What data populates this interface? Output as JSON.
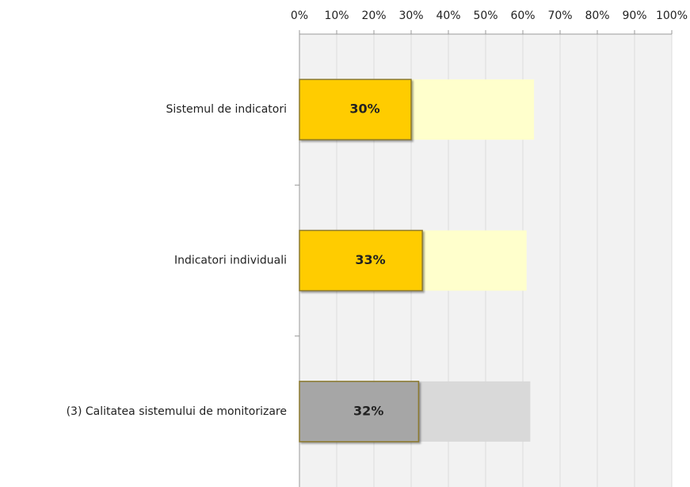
{
  "chart_data": {
    "type": "bar",
    "orientation": "horizontal",
    "categories": [
      "Sistemul de indicatori",
      "Indicatori individuali",
      "(3) Calitatea sistemului de monitorizare"
    ],
    "series": [
      {
        "colors": [
          "#ffffcc",
          "#ffffcc",
          "#d9d9d9"
        ],
        "values": [
          63,
          61,
          62
        ]
      },
      {
        "colors": [
          "#ffcc00",
          "#ffcc00",
          "#a6a6a6"
        ],
        "values": [
          30,
          33,
          32
        ],
        "value_labels": [
          "30%",
          "33%",
          "32%"
        ]
      }
    ],
    "xlim": [
      0,
      100
    ],
    "xticks": [
      {
        "value": 0,
        "label": "0%"
      },
      {
        "value": 10,
        "label": "10%"
      },
      {
        "value": 20,
        "label": "20%"
      },
      {
        "value": 30,
        "label": "30%"
      },
      {
        "value": 40,
        "label": "40%"
      },
      {
        "value": 50,
        "label": "50%"
      },
      {
        "value": 60,
        "label": "60%"
      },
      {
        "value": 70,
        "label": "70%"
      },
      {
        "value": 80,
        "label": "80%"
      },
      {
        "value": 90,
        "label": "90%"
      },
      {
        "value": 100,
        "label": "100%"
      }
    ],
    "grid": true
  }
}
